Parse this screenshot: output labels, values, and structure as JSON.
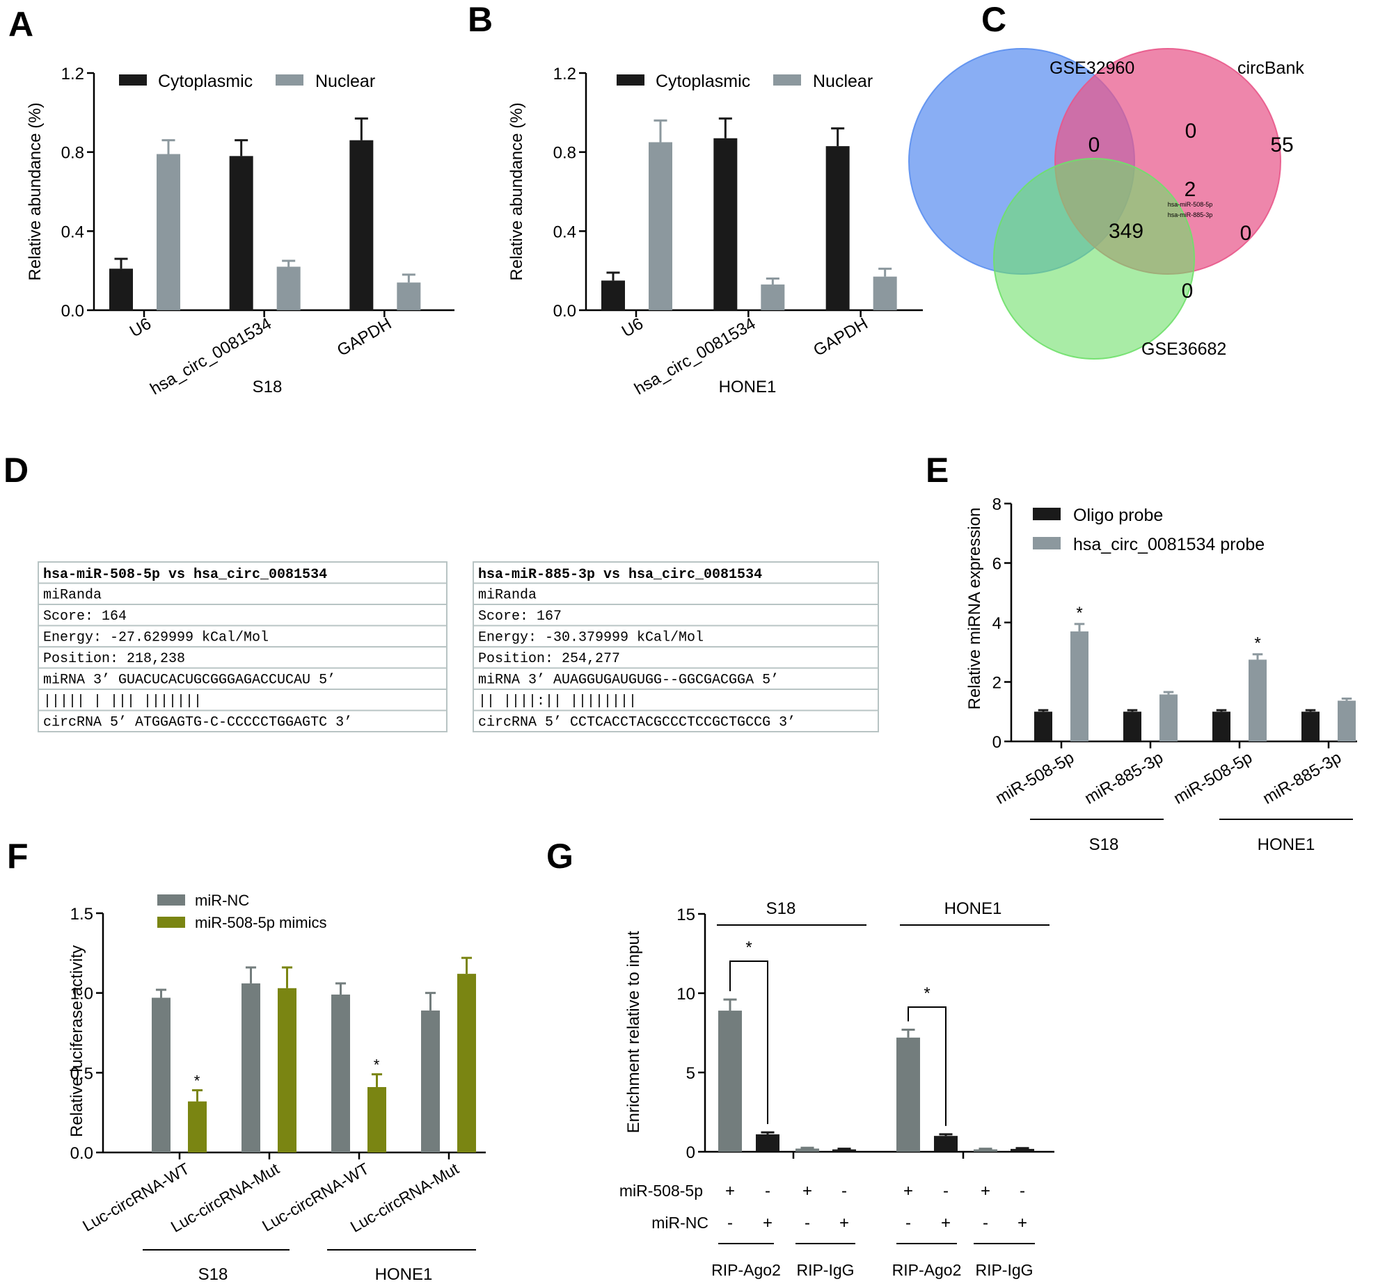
{
  "panels": {
    "A": {
      "letter": "A"
    },
    "B": {
      "letter": "B"
    },
    "C": {
      "letter": "C"
    },
    "D": {
      "letter": "D"
    },
    "E": {
      "letter": "E"
    },
    "F": {
      "letter": "F"
    },
    "G": {
      "letter": "G"
    }
  },
  "colors": {
    "black_bar": "#1a1a1a",
    "gray_bar": "#8c989e",
    "dark_gray_bar": "#737d7d",
    "olive_bar": "#7a8512",
    "venn_blue": "#5b8ff0",
    "venn_pink": "#e8588a",
    "venn_green": "#6fe06a"
  },
  "chart_data": [
    {
      "id": "A",
      "type": "bar",
      "title": "",
      "xlabel": "S18",
      "ylabel": "Relative abundance (%)",
      "ylim": [
        0,
        1.2
      ],
      "yticks": [
        "0.0",
        "0.4",
        "0.8",
        "1.2"
      ],
      "categories": [
        "U6",
        "hsa_circ_0081534",
        "GAPDH"
      ],
      "series": [
        {
          "name": "Cytoplasmic",
          "values": [
            0.21,
            0.78,
            0.86
          ],
          "errors": [
            0.05,
            0.08,
            0.11
          ]
        },
        {
          "name": "Nuclear",
          "values": [
            0.79,
            0.22,
            0.14
          ],
          "errors": [
            0.07,
            0.03,
            0.04
          ]
        }
      ],
      "legend": "top"
    },
    {
      "id": "B",
      "type": "bar",
      "title": "",
      "xlabel": "HONE1",
      "ylabel": "Relative abundance (%)",
      "ylim": [
        0,
        1.2
      ],
      "yticks": [
        "0.0",
        "0.4",
        "0.8",
        "1.2"
      ],
      "categories": [
        "U6",
        "hsa_circ_0081534",
        "GAPDH"
      ],
      "series": [
        {
          "name": "Cytoplasmic",
          "values": [
            0.15,
            0.87,
            0.83
          ],
          "errors": [
            0.04,
            0.1,
            0.09
          ]
        },
        {
          "name": "Nuclear",
          "values": [
            0.85,
            0.13,
            0.17
          ],
          "errors": [
            0.11,
            0.03,
            0.04
          ]
        }
      ],
      "legend": "top"
    },
    {
      "id": "E",
      "type": "bar",
      "title": "",
      "xlabel": "",
      "ylabel": "Relative miRNA expression",
      "ylim": [
        0,
        8
      ],
      "yticks": [
        "0",
        "2",
        "4",
        "6",
        "8"
      ],
      "categories": [
        "miR-508-5p",
        "miR-885-3p",
        "miR-508-5p",
        "miR-885-3p"
      ],
      "groups": [
        "S18",
        "HONE1"
      ],
      "series": [
        {
          "name": "Oligo probe",
          "values": [
            1.0,
            1.0,
            1.0,
            1.0
          ],
          "errors": [
            0.05,
            0.05,
            0.05,
            0.05
          ]
        },
        {
          "name": "hsa_circ_0081534 probe",
          "values": [
            3.7,
            1.58,
            2.75,
            1.37
          ],
          "errors": [
            0.25,
            0.08,
            0.18,
            0.07
          ]
        }
      ],
      "significance": [
        "*",
        "",
        "*",
        ""
      ],
      "legend": "top-left"
    },
    {
      "id": "F",
      "type": "bar",
      "title": "",
      "xlabel": "",
      "ylabel": "Relative luciferase activity",
      "ylim": [
        0,
        1.5
      ],
      "yticks": [
        "0.0",
        "0.5",
        "1.0",
        "1.5"
      ],
      "categories": [
        "Luc-circRNA-WT",
        "Luc-circRNA-Mut",
        "Luc-circRNA-WT",
        "Luc-circRNA-Mut"
      ],
      "groups": [
        "S18",
        "HONE1"
      ],
      "series": [
        {
          "name": "miR-NC",
          "values": [
            0.97,
            1.06,
            0.99,
            0.89
          ],
          "errors": [
            0.05,
            0.1,
            0.07,
            0.11
          ]
        },
        {
          "name": "miR-508-5p  mimics",
          "values": [
            0.32,
            1.03,
            0.41,
            1.12
          ],
          "errors": [
            0.07,
            0.13,
            0.08,
            0.1
          ]
        }
      ],
      "significance": [
        "*",
        "",
        "*",
        ""
      ],
      "legend": "top-left"
    },
    {
      "id": "G",
      "type": "bar",
      "title": "",
      "xlabel": "",
      "ylabel": "Enrichment relative to input",
      "ylim": [
        0,
        15
      ],
      "yticks": [
        "0",
        "5",
        "10",
        "15"
      ],
      "groups": [
        "S18",
        "HONE1"
      ],
      "values": [
        8.9,
        1.1,
        0.2,
        0.15,
        7.2,
        1.0,
        0.15,
        0.18
      ],
      "errors": [
        0.7,
        0.12,
        0.05,
        0.04,
        0.5,
        0.1,
        0.04,
        0.05
      ],
      "row_labels": [
        "miR-508-5p",
        "miR-NC"
      ],
      "row_508": [
        "+",
        "-",
        "+",
        "-",
        "+",
        "-",
        "+",
        "-"
      ],
      "row_nc": [
        "-",
        "+",
        "-",
        "+",
        "-",
        "+",
        "-",
        "+"
      ],
      "sub_groups": [
        "RIP-Ago2",
        "RIP-IgG",
        "RIP-Ago2",
        "RIP-IgG"
      ],
      "significance": "*"
    }
  ],
  "venn": {
    "sets": [
      "GSE32960",
      "circBank",
      "GSE36682"
    ],
    "counts": {
      "only_gse32960": "0",
      "gse32960_circbank": "0",
      "only_circbank": "55",
      "gse32960_gse36682": "349",
      "center": "2",
      "circbank_gse36682": "0",
      "only_gse36682": "0"
    },
    "center_items": [
      "hsa-miR-508-5p",
      "hsa-miR-885-3p"
    ]
  },
  "mirna_tables": [
    {
      "title": "hsa-miR-508-5p vs hsa_circ_0081534",
      "rows": [
        "miRanda",
        "Score: 164",
        "Energy: -27.629999 kCal/Mol",
        "Position: 218,238",
        "miRNA   3’  GUACUCACUGCGGGAGACCUCAU 5’",
        "                  ||||| | ||| |||||||",
        "circRNA 5’  ATGGAGTG-C-CCCCCTGGAGTC 3’"
      ]
    },
    {
      "title": "hsa-miR-885-3p vs hsa_circ_0081534",
      "rows": [
        "miRanda",
        "Score: 167",
        "Energy: -30.379999 kCal/Mol",
        "Position: 254,277",
        "miRNA   3’  AUAGGUGAUGUGG--GGCGACGGA 5’",
        "                  ||  ||||:||  ||||||||",
        "circRNA 5’  CCTCACCTACGCCCTCCGCTGCCG 3’"
      ]
    }
  ]
}
